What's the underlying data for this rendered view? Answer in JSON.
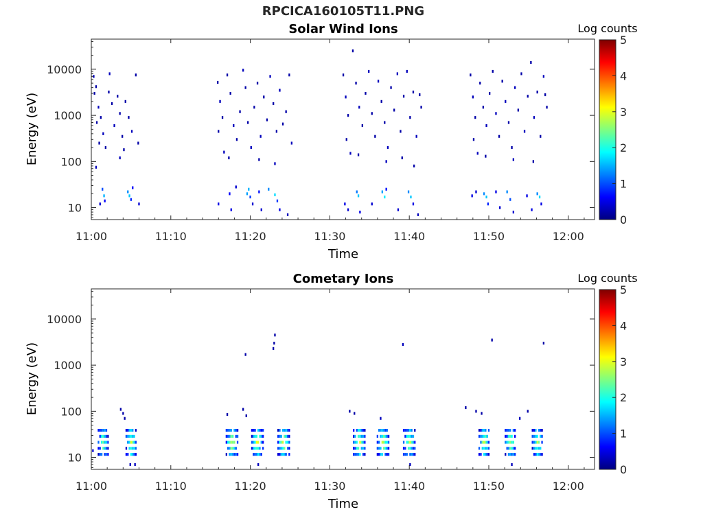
{
  "figure": {
    "title": "RPCICA160105T11.PNG"
  },
  "chart_data": [
    {
      "type": "heatmap",
      "title": "Solar Wind Ions",
      "xlabel": "Time",
      "ylabel": "Energy (eV)",
      "x_ticks": [
        "11:00",
        "11:10",
        "11:20",
        "11:30",
        "11:40",
        "11:50",
        "12:00"
      ],
      "x_tick_minutes": [
        0,
        10,
        20,
        30,
        40,
        50,
        60
      ],
      "xlim_minutes": [
        0,
        63.3
      ],
      "y_scale": "log",
      "y_ticks": [
        "10",
        "100",
        "1000",
        "10000"
      ],
      "y_tick_values": [
        10,
        100,
        1000,
        10000
      ],
      "ylim": [
        5.5,
        45000
      ],
      "colorbar": {
        "label": "Log counts",
        "min": 0,
        "max": 5,
        "ticks": [
          "0",
          "1",
          "2",
          "3",
          "4",
          "5"
        ],
        "colormap": "jet"
      },
      "grid": false,
      "active_intervals_minutes": [
        [
          0,
          6
        ],
        [
          15.5,
          25.5
        ],
        [
          31.5,
          41.5
        ],
        [
          47.5,
          57.5
        ]
      ],
      "points": [
        [
          0.2,
          7000,
          0.3
        ],
        [
          0.5,
          4200,
          0.2
        ],
        [
          0.3,
          3000,
          0.2
        ],
        [
          0.8,
          1500,
          0.3
        ],
        [
          1.1,
          900,
          0.2
        ],
        [
          0.6,
          700,
          0.2
        ],
        [
          1.4,
          400,
          0.3
        ],
        [
          0.9,
          250,
          0.2
        ],
        [
          1.7,
          200,
          0.2
        ],
        [
          0.5,
          75,
          0.3
        ],
        [
          2.1,
          3200,
          0.2
        ],
        [
          2.5,
          1800,
          0.2
        ],
        [
          2.8,
          600,
          0.3
        ],
        [
          3.2,
          2600,
          0.2
        ],
        [
          3.5,
          1100,
          0.2
        ],
        [
          3.8,
          350,
          0.2
        ],
        [
          2.2,
          8000,
          0.3
        ],
        [
          4.2,
          2000,
          0.2
        ],
        [
          4.6,
          900,
          0.2
        ],
        [
          5.0,
          450,
          0.3
        ],
        [
          5.5,
          7500,
          0.2
        ],
        [
          5.8,
          250,
          0.2
        ],
        [
          4.0,
          180,
          0.2
        ],
        [
          3.5,
          120,
          0.3
        ],
        [
          1.3,
          25,
          1.0
        ],
        [
          1.5,
          18,
          1.5
        ],
        [
          1.6,
          14,
          0.6
        ],
        [
          4.5,
          22,
          1.3
        ],
        [
          4.7,
          18,
          1.6
        ],
        [
          4.9,
          15,
          0.8
        ],
        [
          1.0,
          12,
          0.4
        ],
        [
          5.9,
          12,
          0.4
        ],
        [
          5.1,
          27,
          0.6
        ],
        [
          15.8,
          5200,
          0.2
        ],
        [
          16.1,
          2000,
          0.3
        ],
        [
          16.4,
          900,
          0.2
        ],
        [
          15.9,
          450,
          0.2
        ],
        [
          16.6,
          160,
          0.3
        ],
        [
          17.0,
          7500,
          0.2
        ],
        [
          17.4,
          3000,
          0.2
        ],
        [
          17.8,
          600,
          0.3
        ],
        [
          18.2,
          300,
          0.2
        ],
        [
          18.6,
          1200,
          0.2
        ],
        [
          19.0,
          9500,
          0.3
        ],
        [
          19.3,
          4000,
          0.2
        ],
        [
          19.6,
          700,
          0.2
        ],
        [
          20.0,
          200,
          0.3
        ],
        [
          20.4,
          1500,
          0.2
        ],
        [
          20.8,
          5000,
          0.2
        ],
        [
          21.2,
          350,
          0.3
        ],
        [
          21.6,
          2500,
          0.2
        ],
        [
          22.0,
          800,
          0.2
        ],
        [
          22.4,
          7000,
          0.3
        ],
        [
          22.8,
          1800,
          0.2
        ],
        [
          23.2,
          450,
          0.2
        ],
        [
          23.6,
          3500,
          0.3
        ],
        [
          24.0,
          650,
          0.2
        ],
        [
          24.4,
          1200,
          0.2
        ],
        [
          24.8,
          7500,
          0.2
        ],
        [
          25.1,
          250,
          0.3
        ],
        [
          17.2,
          120,
          0.2
        ],
        [
          21.0,
          110,
          0.2
        ],
        [
          23.0,
          90,
          0.3
        ],
        [
          15.9,
          12,
          0.5
        ],
        [
          17.3,
          20,
          0.6
        ],
        [
          17.5,
          9,
          0.5
        ],
        [
          18.1,
          28,
          0.4
        ],
        [
          19.5,
          20,
          1.4
        ],
        [
          19.7,
          25,
          1.5
        ],
        [
          19.9,
          17,
          0.9
        ],
        [
          20.2,
          12,
          0.4
        ],
        [
          21.0,
          22,
          0.7
        ],
        [
          21.3,
          9,
          0.4
        ],
        [
          22.2,
          25,
          1.3
        ],
        [
          23.0,
          19,
          1.7
        ],
        [
          23.3,
          14,
          0.9
        ],
        [
          23.6,
          9,
          0.5
        ],
        [
          24.6,
          7,
          0.3
        ],
        [
          31.6,
          7500,
          0.2
        ],
        [
          31.9,
          2500,
          0.3
        ],
        [
          32.2,
          1000,
          0.2
        ],
        [
          32.0,
          300,
          0.2
        ],
        [
          32.5,
          150,
          0.3
        ],
        [
          32.8,
          25000,
          0.2
        ],
        [
          33.2,
          5000,
          0.2
        ],
        [
          33.6,
          1500,
          0.3
        ],
        [
          34.0,
          600,
          0.2
        ],
        [
          34.4,
          3000,
          0.2
        ],
        [
          34.8,
          9000,
          0.3
        ],
        [
          35.2,
          1100,
          0.2
        ],
        [
          35.6,
          350,
          0.2
        ],
        [
          36.0,
          5500,
          0.3
        ],
        [
          36.4,
          2000,
          0.2
        ],
        [
          36.8,
          700,
          0.2
        ],
        [
          37.2,
          200,
          0.3
        ],
        [
          37.6,
          4000,
          0.2
        ],
        [
          38.0,
          1300,
          0.2
        ],
        [
          38.4,
          8000,
          0.3
        ],
        [
          38.8,
          450,
          0.2
        ],
        [
          39.2,
          2600,
          0.2
        ],
        [
          39.6,
          9000,
          0.3
        ],
        [
          40.0,
          900,
          0.2
        ],
        [
          40.4,
          3200,
          0.2
        ],
        [
          40.8,
          350,
          0.3
        ],
        [
          41.2,
          2800,
          0.2
        ],
        [
          41.4,
          1500,
          0.2
        ],
        [
          33.5,
          140,
          0.2
        ],
        [
          37.0,
          100,
          0.3
        ],
        [
          39.0,
          120,
          0.2
        ],
        [
          40.5,
          80,
          0.2
        ],
        [
          31.8,
          12,
          0.5
        ],
        [
          32.2,
          9,
          0.4
        ],
        [
          33.3,
          22,
          1.2
        ],
        [
          33.5,
          18,
          1.6
        ],
        [
          33.7,
          8,
          0.5
        ],
        [
          35.2,
          12,
          0.4
        ],
        [
          36.5,
          22,
          1.4
        ],
        [
          36.8,
          17,
          1.8
        ],
        [
          37.0,
          25,
          0.7
        ],
        [
          38.5,
          9,
          0.4
        ],
        [
          39.8,
          22,
          1.3
        ],
        [
          40.1,
          17,
          1.6
        ],
        [
          40.4,
          12,
          0.5
        ],
        [
          41.0,
          7,
          0.3
        ],
        [
          47.6,
          7500,
          0.2
        ],
        [
          47.9,
          2500,
          0.3
        ],
        [
          48.2,
          900,
          0.2
        ],
        [
          48.0,
          300,
          0.2
        ],
        [
          48.5,
          150,
          0.3
        ],
        [
          48.8,
          5000,
          0.2
        ],
        [
          49.2,
          1500,
          0.2
        ],
        [
          49.6,
          600,
          0.3
        ],
        [
          50.0,
          3000,
          0.2
        ],
        [
          50.4,
          9000,
          0.2
        ],
        [
          50.8,
          1100,
          0.3
        ],
        [
          51.2,
          350,
          0.2
        ],
        [
          51.6,
          5500,
          0.2
        ],
        [
          52.0,
          2000,
          0.3
        ],
        [
          52.4,
          700,
          0.2
        ],
        [
          52.8,
          200,
          0.2
        ],
        [
          53.2,
          4000,
          0.3
        ],
        [
          53.6,
          1300,
          0.2
        ],
        [
          54.0,
          8000,
          0.2
        ],
        [
          54.4,
          450,
          0.3
        ],
        [
          54.8,
          2600,
          0.2
        ],
        [
          55.2,
          14000,
          0.2
        ],
        [
          55.6,
          900,
          0.3
        ],
        [
          56.0,
          3200,
          0.2
        ],
        [
          56.4,
          350,
          0.2
        ],
        [
          56.8,
          7000,
          0.3
        ],
        [
          57.0,
          2800,
          0.2
        ],
        [
          57.2,
          1500,
          0.2
        ],
        [
          49.5,
          130,
          0.2
        ],
        [
          53.0,
          110,
          0.3
        ],
        [
          55.5,
          100,
          0.2
        ],
        [
          47.8,
          18,
          0.5
        ],
        [
          48.3,
          22,
          0.4
        ],
        [
          49.3,
          20,
          1.3
        ],
        [
          49.6,
          17,
          1.6
        ],
        [
          49.8,
          12,
          0.8
        ],
        [
          50.8,
          22,
          0.5
        ],
        [
          51.3,
          10,
          0.4
        ],
        [
          52.2,
          22,
          1.3
        ],
        [
          52.6,
          15,
          1.0
        ],
        [
          53.0,
          8,
          0.4
        ],
        [
          54.7,
          18,
          0.5
        ],
        [
          55.3,
          9,
          0.5
        ],
        [
          56.0,
          20,
          1.3
        ],
        [
          56.3,
          17,
          1.7
        ],
        [
          56.5,
          12,
          0.5
        ]
      ]
    },
    {
      "type": "heatmap",
      "title": "Cometary Ions",
      "xlabel": "Time",
      "ylabel": "Energy (eV)",
      "x_ticks": [
        "11:00",
        "11:10",
        "11:20",
        "11:30",
        "11:40",
        "11:50",
        "12:00"
      ],
      "x_tick_minutes": [
        0,
        10,
        20,
        30,
        40,
        50,
        60
      ],
      "xlim_minutes": [
        0,
        63.3
      ],
      "y_scale": "log",
      "y_ticks": [
        "10",
        "100",
        "1000",
        "10000"
      ],
      "y_tick_values": [
        10,
        100,
        1000,
        10000
      ],
      "ylim": [
        5.5,
        45000
      ],
      "colorbar": {
        "label": "Log counts",
        "min": 0,
        "max": 5,
        "ticks": [
          "0",
          "1",
          "2",
          "3",
          "4",
          "5"
        ],
        "colormap": "jet"
      },
      "grid": false,
      "sparse_points": [
        [
          19.3,
          1700,
          0.2
        ],
        [
          22.8,
          2300,
          0.2
        ],
        [
          22.9,
          3000,
          0.2
        ],
        [
          23.0,
          4500,
          0.2
        ],
        [
          39.1,
          2800,
          0.3
        ],
        [
          47.0,
          120,
          0.2
        ],
        [
          50.3,
          3500,
          0.2
        ],
        [
          56.8,
          3000,
          0.2
        ],
        [
          3.6,
          110,
          0.2
        ],
        [
          3.9,
          90,
          0.2
        ],
        [
          4.1,
          70,
          0.2
        ],
        [
          17.0,
          85,
          0.2
        ],
        [
          19.0,
          110,
          0.2
        ],
        [
          19.4,
          80,
          0.2
        ],
        [
          32.4,
          100,
          0.2
        ],
        [
          33.0,
          90,
          0.2
        ],
        [
          36.3,
          70,
          0.3
        ],
        [
          48.3,
          100,
          0.2
        ],
        [
          49.0,
          90,
          0.2
        ],
        [
          53.8,
          70,
          0.3
        ],
        [
          54.8,
          100,
          0.2
        ],
        [
          0.1,
          14,
          0.4
        ],
        [
          4.8,
          7,
          0.3
        ],
        [
          5.4,
          7,
          0.3
        ],
        [
          20.9,
          7,
          0.3
        ],
        [
          40.0,
          7,
          0.3
        ],
        [
          52.8,
          7,
          0.3
        ]
      ],
      "clusters": [
        {
          "t": [
            0.8,
            2.0
          ],
          "e": [
            10,
            45
          ],
          "peak": 2.5
        },
        {
          "t": [
            4.3,
            5.6
          ],
          "e": [
            10,
            45
          ],
          "peak": 2.8
        },
        {
          "t": [
            16.9,
            18.3
          ],
          "e": [
            10,
            45
          ],
          "peak": 3.0
        },
        {
          "t": [
            20.1,
            21.5
          ],
          "e": [
            10,
            45
          ],
          "peak": 3.0
        },
        {
          "t": [
            23.4,
            24.8
          ],
          "e": [
            10,
            45
          ],
          "peak": 3.1
        },
        {
          "t": [
            32.9,
            34.3
          ],
          "e": [
            10,
            45
          ],
          "peak": 3.0
        },
        {
          "t": [
            35.9,
            37.3
          ],
          "e": [
            10,
            45
          ],
          "peak": 3.0
        },
        {
          "t": [
            39.2,
            40.6
          ],
          "e": [
            10,
            45
          ],
          "peak": 2.8
        },
        {
          "t": [
            48.7,
            50.0
          ],
          "e": [
            10,
            45
          ],
          "peak": 2.8
        },
        {
          "t": [
            52.0,
            53.3
          ],
          "e": [
            10,
            45
          ],
          "peak": 2.8
        },
        {
          "t": [
            55.4,
            56.7
          ],
          "e": [
            10,
            45
          ],
          "peak": 2.7
        }
      ]
    }
  ]
}
